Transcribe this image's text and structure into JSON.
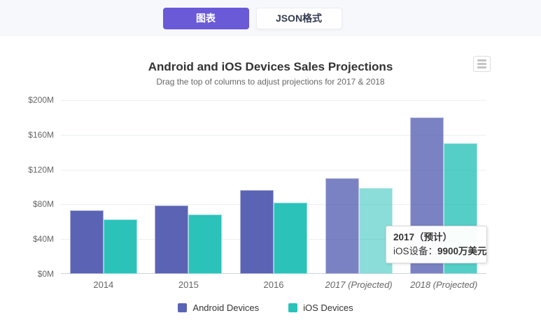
{
  "header": {
    "tabs": [
      {
        "label": "图表",
        "active": true
      },
      {
        "label": "JSON格式",
        "active": false
      }
    ]
  },
  "chart": {
    "title": "Android and iOS Devices Sales Projections",
    "subtitle": "Drag the top of columns to adjust projections for 2017 & 2018"
  },
  "chart_data": {
    "type": "bar",
    "title": "Android and iOS Devices Sales Projections",
    "subtitle": "Drag the top of columns to adjust projections for 2017 & 2018",
    "categories": [
      "2014",
      "2015",
      "2016",
      "2017 (Projected)",
      "2018 (Projected)"
    ],
    "projected_from_index": 3,
    "series": [
      {
        "name": "Android Devices",
        "color": "#5b63b5",
        "values": [
          73,
          79,
          96,
          110,
          180
        ]
      },
      {
        "name": "iOS Devices",
        "color": "#2bc2ba",
        "values": [
          63,
          68,
          82,
          99,
          150
        ]
      }
    ],
    "yticks": [
      {
        "label": "$0M",
        "value": 0
      },
      {
        "label": "$40M",
        "value": 40
      },
      {
        "label": "$80M",
        "value": 80
      },
      {
        "label": "$120M",
        "value": 120
      },
      {
        "label": "$160M",
        "value": 160
      },
      {
        "label": "$200M",
        "value": 200
      }
    ],
    "ylim": [
      0,
      200
    ],
    "grid": true,
    "legend_position": "bottom",
    "projected_opacity": 0.8,
    "hover_opacity": 0.55,
    "hover_point": {
      "series_index": 1,
      "category_index": 3
    }
  },
  "tooltip": {
    "header": "2017（预计）",
    "series_label": "iOS设备：",
    "value": "9900万美元"
  },
  "colors": {
    "active_tab_bg": "#6a5ad8",
    "topbar_bg": "#f7f8fc",
    "android": "#5b63b5",
    "ios": "#2bc2ba"
  }
}
